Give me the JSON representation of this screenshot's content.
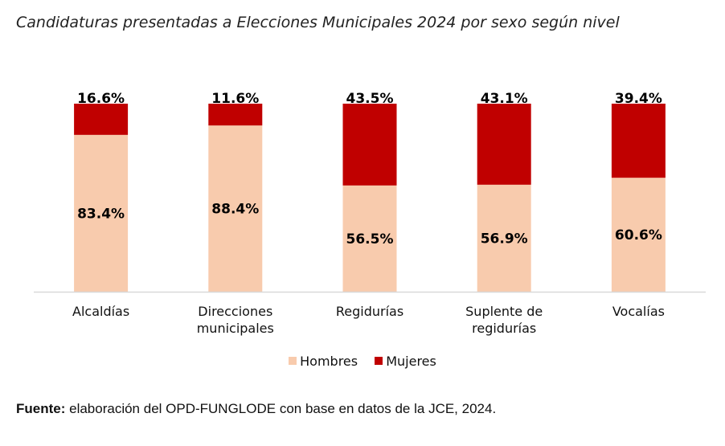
{
  "chart_data": {
    "type": "bar",
    "stacked": true,
    "percent_stacked": true,
    "title": "Candidaturas presentadas a Elecciones Municipales 2024 por sexo según nivel",
    "categories": [
      [
        "Alcaldías"
      ],
      [
        "Direcciones",
        "municipales"
      ],
      [
        "Regidurías"
      ],
      [
        "Suplente de",
        "regidurías"
      ],
      [
        "Vocalías"
      ]
    ],
    "category_names": [
      "Alcaldías",
      "Direcciones municipales",
      "Regidurías",
      "Suplente de regidurías",
      "Vocalías"
    ],
    "series": [
      {
        "name": "Hombres",
        "color": "#F8CBAD",
        "values": [
          83.4,
          88.4,
          56.5,
          56.9,
          60.6
        ],
        "labels": [
          "83.4%",
          "88.4%",
          "56.5%",
          "56.9%",
          "60.6%"
        ]
      },
      {
        "name": "Mujeres",
        "color": "#C00000",
        "values": [
          16.6,
          11.6,
          43.5,
          43.1,
          39.4
        ],
        "labels": [
          "16.6%",
          "11.6%",
          "43.5%",
          "43.1%",
          "39.4%"
        ]
      }
    ],
    "xlabel": "",
    "ylabel": "",
    "ylim": [
      0,
      100
    ],
    "grid": false,
    "legend_position": "bottom"
  },
  "source": {
    "label": "Fuente:",
    "text": " elaboración del OPD-FUNGLODE con base en datos de la JCE, 2024."
  }
}
